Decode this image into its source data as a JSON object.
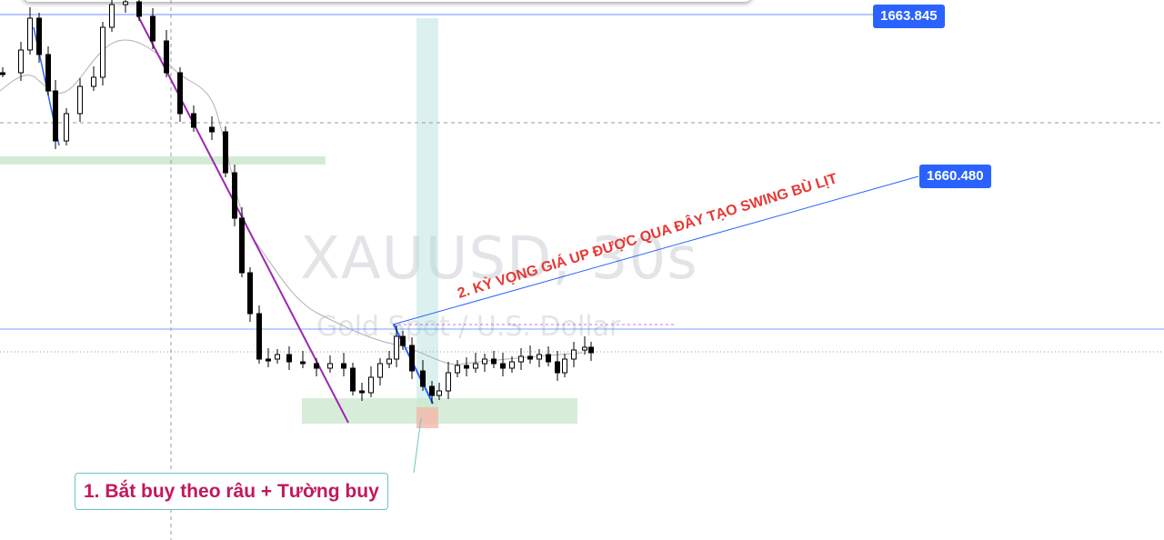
{
  "chart": {
    "symbol_watermark": "XAUUSD, 30s",
    "description_watermark": "Gold Spot / U.S. Dollar"
  },
  "price_labels": {
    "upper": "1663.845",
    "target": "1660.480"
  },
  "annotations": {
    "entry_note": "1. Bắt buy theo râu + Tường buy",
    "expectation_note": "2. KỲ VỌNG GIÁ UP ĐƯỢC QUA ĐÂY TẠO SWING BÙ LỊT"
  },
  "colors": {
    "price_line": "#2962ff",
    "trend_line": "#9c27b0",
    "note_text": "#c2185b",
    "expectation_text": "#e53935",
    "buy_zone": "#a5d6a7",
    "entry_zone": "#ef9a9a",
    "vertical_band": "#b2dfdb"
  }
}
